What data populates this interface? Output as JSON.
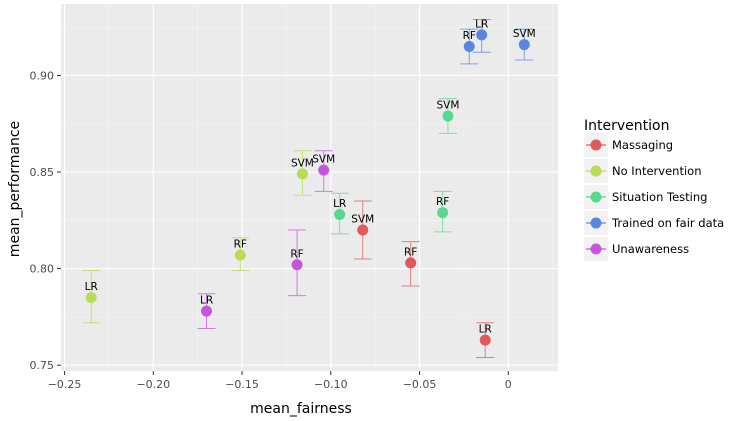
{
  "chart_data": {
    "type": "scatter",
    "xlabel": "mean_fairness",
    "ylabel": "mean_performance",
    "xlim": [
      -0.252,
      0.028
    ],
    "ylim": [
      0.747,
      0.937
    ],
    "x_ticks": [
      {
        "value": -0.25,
        "label": "−0.25"
      },
      {
        "value": -0.2,
        "label": "−0.20"
      },
      {
        "value": -0.15,
        "label": "−0.15"
      },
      {
        "value": -0.1,
        "label": "−0.10"
      },
      {
        "value": -0.05,
        "label": "−0.05"
      },
      {
        "value": 0,
        "label": "0"
      }
    ],
    "y_ticks": [
      {
        "value": 0.75,
        "label": "0.75"
      },
      {
        "value": 0.8,
        "label": "0.80"
      },
      {
        "value": 0.85,
        "label": "0.85"
      },
      {
        "value": 0.9,
        "label": "0.90"
      }
    ],
    "grid": true,
    "legend": {
      "title": "Intervention",
      "position": "right"
    },
    "series": [
      {
        "name": "Massaging",
        "color": "#E05A5A",
        "points": [
          {
            "label": "SVM",
            "x": -0.082,
            "y": 0.82,
            "ymin": 0.805,
            "ymax": 0.835
          },
          {
            "label": "RF",
            "x": -0.055,
            "y": 0.803,
            "ymin": 0.791,
            "ymax": 0.814
          },
          {
            "label": "LR",
            "x": -0.013,
            "y": 0.763,
            "ymin": 0.754,
            "ymax": 0.772
          }
        ]
      },
      {
        "name": "No Intervention",
        "color": "#B7DC55",
        "points": [
          {
            "label": "LR",
            "x": -0.235,
            "y": 0.785,
            "ymin": 0.772,
            "ymax": 0.799
          },
          {
            "label": "RF",
            "x": -0.151,
            "y": 0.807,
            "ymin": 0.799,
            "ymax": 0.816
          },
          {
            "label": "SVM",
            "x": -0.116,
            "y": 0.849,
            "ymin": 0.838,
            "ymax": 0.861
          }
        ]
      },
      {
        "name": "Situation Testing",
        "color": "#56D98F",
        "points": [
          {
            "label": "LR",
            "x": -0.095,
            "y": 0.828,
            "ymin": 0.818,
            "ymax": 0.839
          },
          {
            "label": "RF",
            "x": -0.037,
            "y": 0.829,
            "ymin": 0.819,
            "ymax": 0.84
          },
          {
            "label": "SVM",
            "x": -0.034,
            "y": 0.879,
            "ymin": 0.87,
            "ymax": 0.888
          }
        ]
      },
      {
        "name": "Trained on fair data",
        "color": "#5B86E0",
        "points": [
          {
            "label": "RF",
            "x": -0.022,
            "y": 0.915,
            "ymin": 0.906,
            "ymax": 0.924
          },
          {
            "label": "LR",
            "x": -0.015,
            "y": 0.921,
            "ymin": 0.912,
            "ymax": 0.929
          },
          {
            "label": "SVM",
            "x": 0.009,
            "y": 0.916,
            "ymin": 0.908,
            "ymax": 0.924
          }
        ]
      },
      {
        "name": "Unawareness",
        "color": "#C655DD",
        "points": [
          {
            "label": "LR",
            "x": -0.17,
            "y": 0.778,
            "ymin": 0.769,
            "ymax": 0.787
          },
          {
            "label": "RF",
            "x": -0.119,
            "y": 0.802,
            "ymin": 0.786,
            "ymax": 0.82
          },
          {
            "label": "SVM",
            "x": -0.104,
            "y": 0.851,
            "ymin": 0.84,
            "ymax": 0.861
          }
        ]
      }
    ]
  }
}
